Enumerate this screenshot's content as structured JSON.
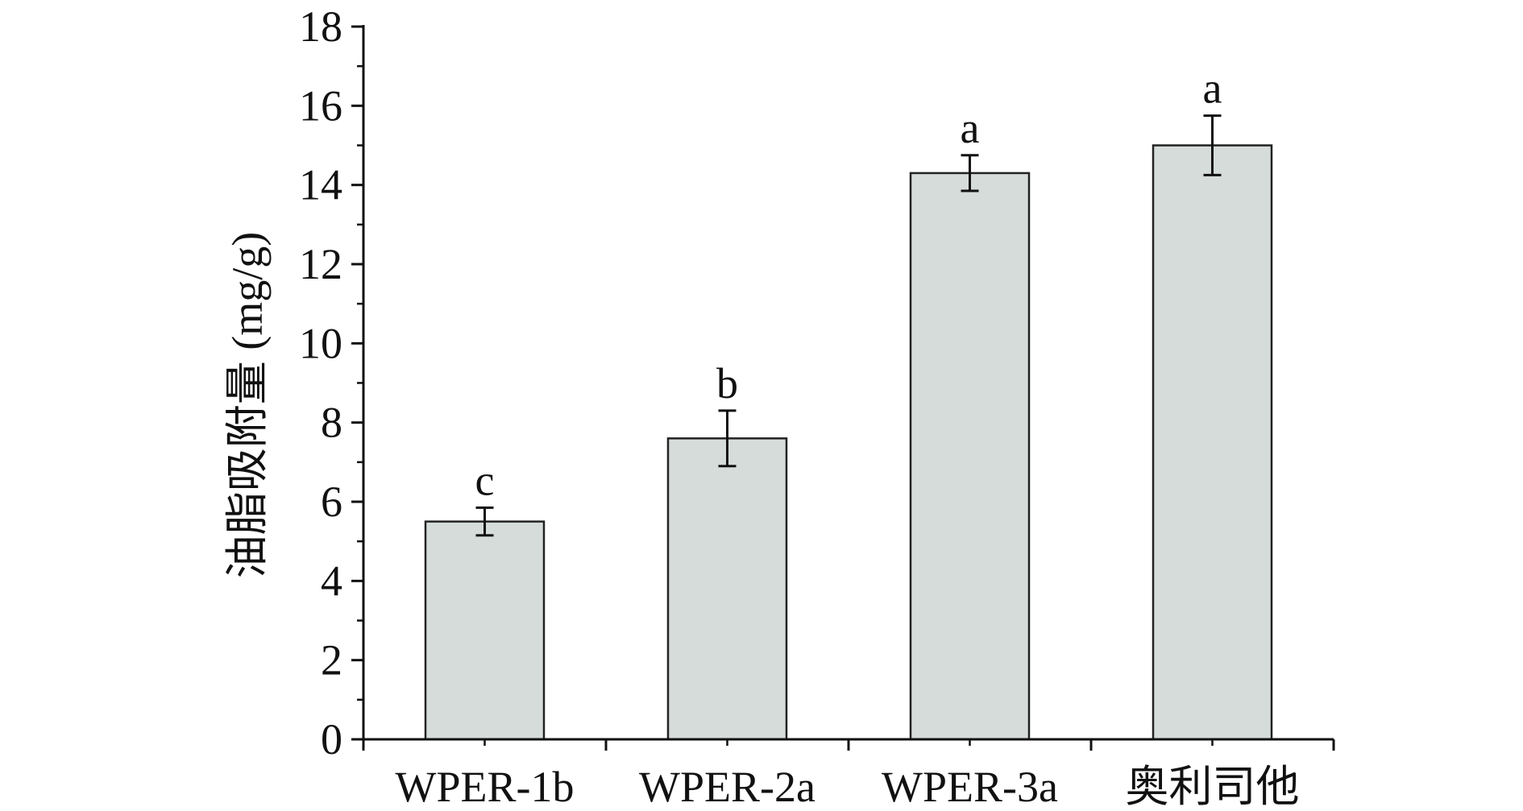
{
  "chart_data": {
    "type": "bar",
    "categories": [
      "WPER-1b",
      "WPER-2a",
      "WPER-3a",
      "奥利司他"
    ],
    "values": [
      5.5,
      7.6,
      14.3,
      15.0
    ],
    "errors": [
      0.35,
      0.7,
      0.45,
      0.75
    ],
    "significance": [
      "c",
      "b",
      "a",
      "a"
    ],
    "title": "",
    "xlabel": "",
    "ylabel": "油脂吸附量 (mg/g)",
    "ylim": [
      0,
      18
    ],
    "yticks": [
      "0",
      "2",
      "4",
      "6",
      "8",
      "10",
      "12",
      "14",
      "16",
      "18"
    ],
    "grid": false,
    "legend": "none",
    "colors": {
      "bar_fill": "#d5dcd9",
      "bar_stroke": "#222222",
      "axis": "#111111"
    }
  }
}
